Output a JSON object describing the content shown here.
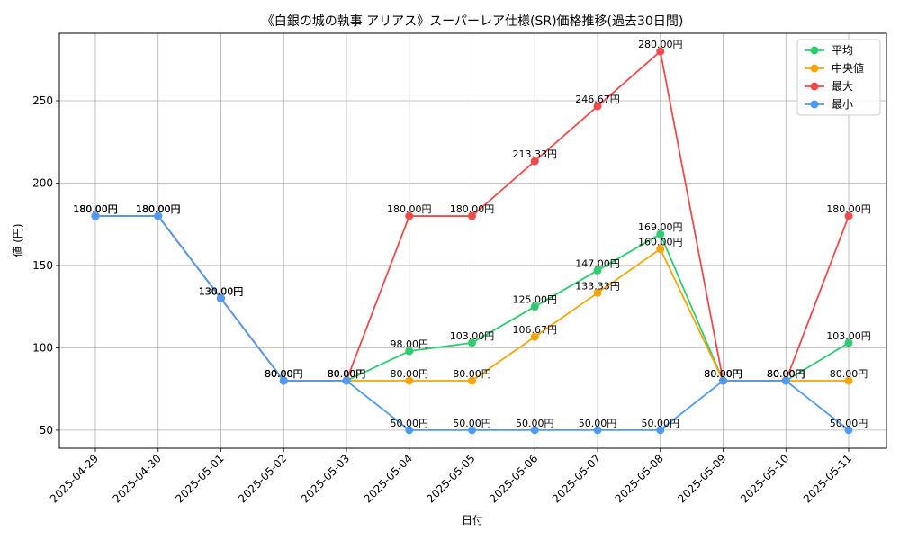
{
  "chart_data": {
    "type": "line",
    "title": "《白銀の城の執事 アリアス》スーパーレア仕様(SR)価格推移(過去30日間)",
    "xlabel": "日付",
    "ylabel": "値 (円)",
    "ylim": [
      39,
      291
    ],
    "yticks": [
      50,
      100,
      150,
      200,
      250
    ],
    "grid": true,
    "legend_position": "top-right",
    "label_suffix": "円",
    "categories": [
      "2025-04-29",
      "2025-04-30",
      "2025-05-01",
      "2025-05-02",
      "2025-05-03",
      "2025-05-04",
      "2025-05-05",
      "2025-05-06",
      "2025-05-07",
      "2025-05-08",
      "2025-05-09",
      "2025-05-10",
      "2025-05-11"
    ],
    "series": [
      {
        "name": "平均",
        "color": "#2ecc71",
        "values": [
          180.0,
          180.0,
          130.0,
          80.0,
          80.0,
          98.0,
          103.0,
          125.0,
          147.0,
          169.0,
          80.0,
          80.0,
          103.0
        ]
      },
      {
        "name": "中央値",
        "color": "#f5a50a",
        "values": [
          180.0,
          180.0,
          130.0,
          80.0,
          80.0,
          80.0,
          80.0,
          106.67,
          133.33,
          160.0,
          80.0,
          80.0,
          80.0
        ]
      },
      {
        "name": "最大",
        "color": "#ef4b4b",
        "values": [
          180.0,
          180.0,
          130.0,
          80.0,
          80.0,
          180.0,
          180.0,
          213.33,
          246.67,
          280.0,
          80.0,
          80.0,
          180.0
        ]
      },
      {
        "name": "最小",
        "color": "#4f9af2",
        "values": [
          180.0,
          180.0,
          130.0,
          80.0,
          80.0,
          50.0,
          50.0,
          50.0,
          50.0,
          50.0,
          80.0,
          80.0,
          50.0
        ]
      }
    ]
  }
}
